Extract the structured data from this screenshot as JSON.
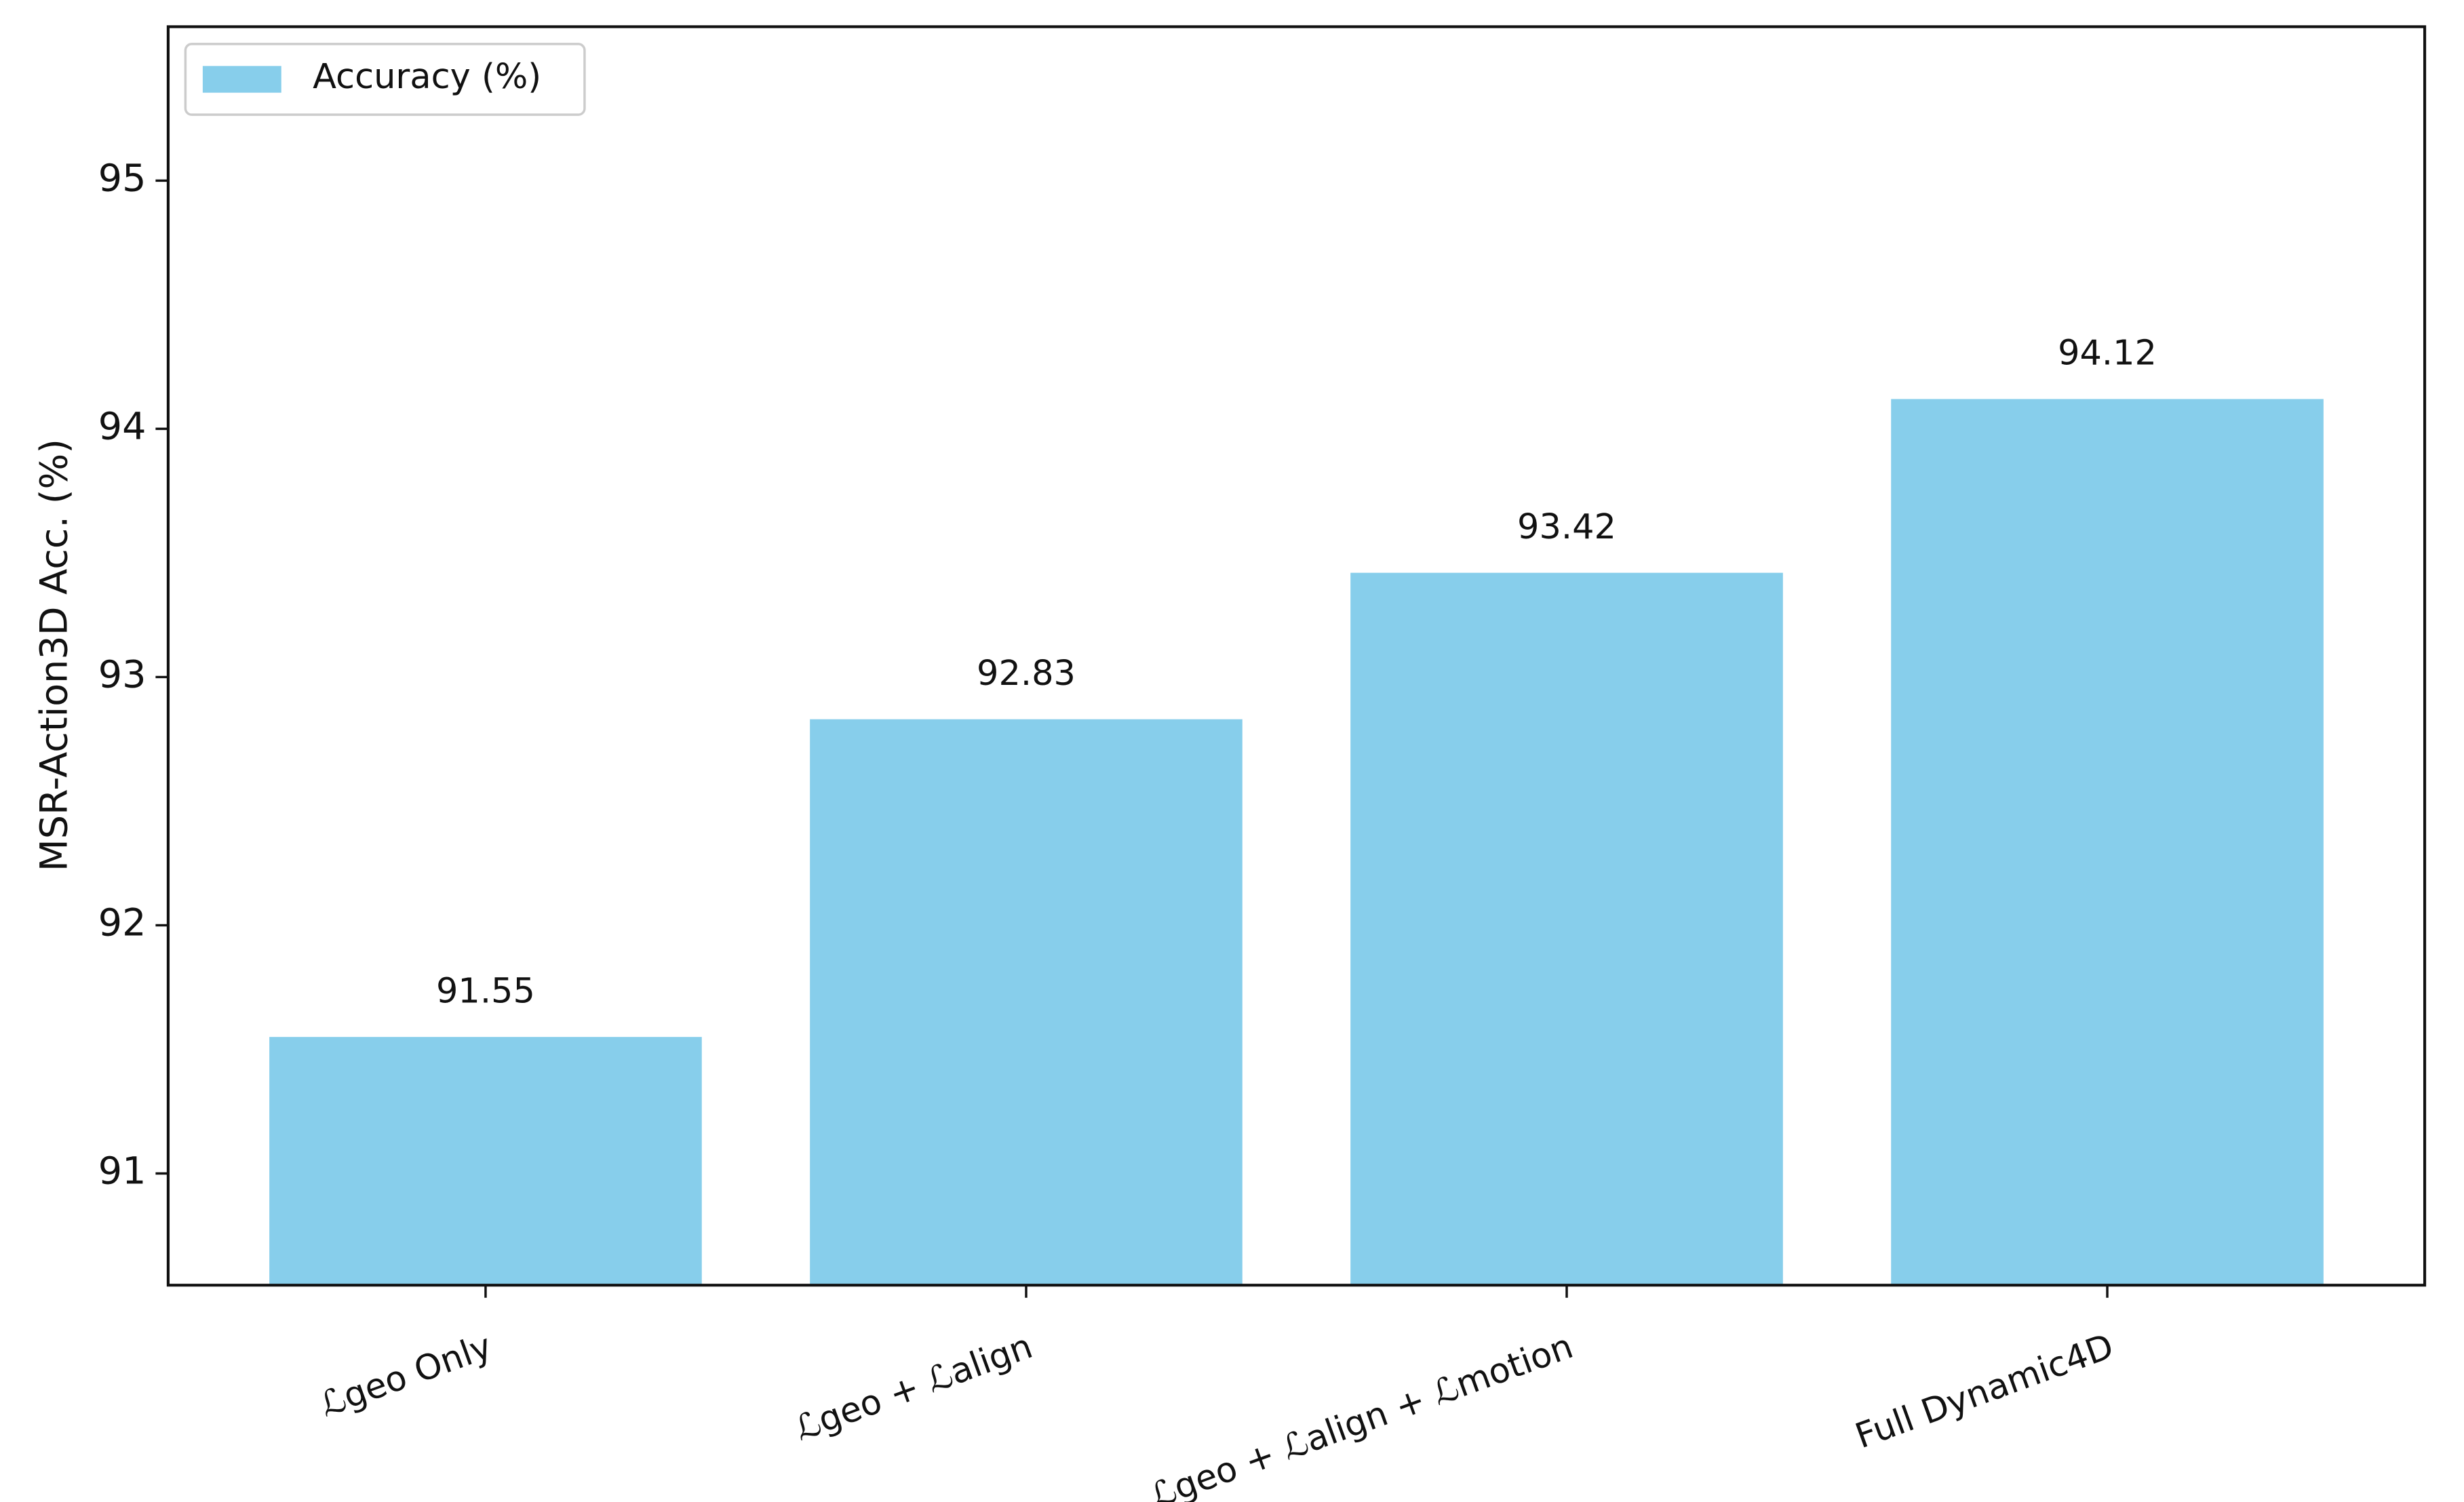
{
  "chart_data": {
    "type": "bar",
    "y_label": "MSR-Action3D Acc. (%)",
    "categories": [
      "ℒgeo Only",
      "ℒgeo + ℒalign",
      "ℒgeo + ℒalign + ℒmotion",
      "Full Dynamic4D"
    ],
    "series": [
      {
        "name": "Accuracy (%)",
        "color": "#87ceeb",
        "values": [
          91.55,
          92.83,
          93.42,
          94.12
        ]
      }
    ],
    "ylim": [
      90.55,
      95.62
    ],
    "yticks": [
      91,
      92,
      93,
      94,
      95
    ],
    "legend": "upper left",
    "grid": false
  }
}
